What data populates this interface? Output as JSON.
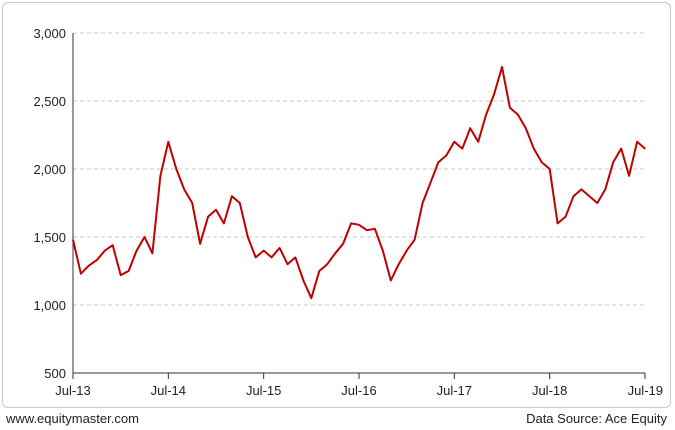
{
  "footer": {
    "website": "www.equitymaster.com",
    "source": "Data Source: Ace Equity"
  },
  "colors": {
    "line": "#c00000",
    "grid": "#c8c8c8",
    "axis": "#333333"
  },
  "chart_data": {
    "type": "line",
    "title": "",
    "xlabel": "",
    "ylabel": "",
    "ylim": [
      500,
      3000
    ],
    "yticks": [
      500,
      1000,
      1500,
      2000,
      2500,
      3000
    ],
    "ytick_labels": [
      "500",
      "1,000",
      "1,500",
      "2,000",
      "2,500",
      "3,000"
    ],
    "xlim": [
      "2013-07",
      "2019-07"
    ],
    "xticks": [
      "2013-07",
      "2014-07",
      "2015-07",
      "2016-07",
      "2017-07",
      "2018-07",
      "2019-07"
    ],
    "xtick_labels": [
      "Jul-13",
      "Jul-14",
      "Jul-15",
      "Jul-16",
      "Jul-17",
      "Jul-18",
      "Jul-19"
    ],
    "grid": "horizontal dashed",
    "legend": "none",
    "series": [
      {
        "x": [
          "2013-07",
          "2013-08",
          "2013-09",
          "2013-10",
          "2013-11",
          "2013-12",
          "2014-01",
          "2014-02",
          "2014-03",
          "2014-04",
          "2014-05",
          "2014-06",
          "2014-07",
          "2014-08",
          "2014-09",
          "2014-10",
          "2014-11",
          "2014-12",
          "2015-01",
          "2015-02",
          "2015-03",
          "2015-04",
          "2015-05",
          "2015-06",
          "2015-07",
          "2015-08",
          "2015-09",
          "2015-10",
          "2015-11",
          "2015-12",
          "2016-01",
          "2016-02",
          "2016-03",
          "2016-04",
          "2016-05",
          "2016-06",
          "2016-07",
          "2016-08",
          "2016-09",
          "2016-10",
          "2016-11",
          "2016-12",
          "2017-01",
          "2017-02",
          "2017-03",
          "2017-04",
          "2017-05",
          "2017-06",
          "2017-07",
          "2017-08",
          "2017-09",
          "2017-10",
          "2017-11",
          "2017-12",
          "2018-01",
          "2018-02",
          "2018-03",
          "2018-04",
          "2018-05",
          "2018-06",
          "2018-07",
          "2018-08",
          "2018-09",
          "2018-10",
          "2018-11",
          "2018-12",
          "2019-01",
          "2019-02",
          "2019-03",
          "2019-04",
          "2019-05",
          "2019-06",
          "2019-07"
        ],
        "values": [
          1480,
          1230,
          1290,
          1330,
          1400,
          1440,
          1220,
          1250,
          1400,
          1500,
          1380,
          1950,
          2200,
          2000,
          1850,
          1750,
          1450,
          1650,
          1700,
          1600,
          1800,
          1750,
          1500,
          1350,
          1400,
          1350,
          1420,
          1300,
          1350,
          1180,
          1050,
          1250,
          1300,
          1380,
          1450,
          1600,
          1590,
          1550,
          1560,
          1400,
          1180,
          1300,
          1400,
          1480,
          1750,
          1900,
          2050,
          2100,
          2200,
          2150,
          2300,
          2200,
          2400,
          2550,
          2750,
          2450,
          2400,
          2300,
          2150,
          2050,
          2000,
          1600,
          1650,
          1800,
          1850,
          1800,
          1750,
          1850,
          2050,
          2150,
          1950,
          2200,
          2150
        ]
      }
    ]
  }
}
